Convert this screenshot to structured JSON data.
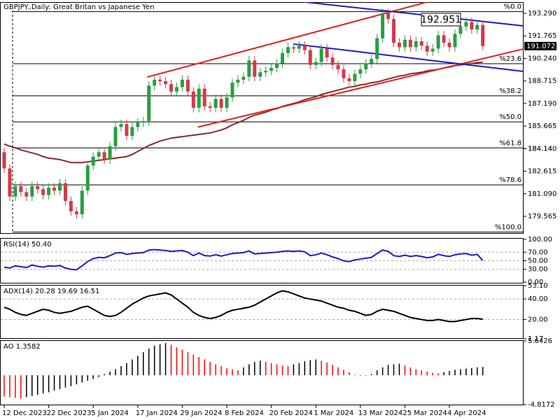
{
  "chart_data": [
    {
      "type": "candlestick",
      "title": "GBPJPY.,Daily:  Great Britan vs Japanese Yen",
      "categories": [
        "12 Dec 2023",
        null,
        null,
        null,
        null,
        null,
        null,
        null,
        "22 Dec 2023",
        null,
        null,
        null,
        null,
        null,
        null,
        null,
        "5 Jan 2024",
        null,
        null,
        null,
        null,
        null,
        null,
        null,
        "17 Jan 2024",
        null,
        null,
        null,
        null,
        null,
        null,
        null,
        "29 Jan 2024",
        null,
        null,
        null,
        null,
        null,
        null,
        null,
        "8 Feb 2024",
        null,
        null,
        null,
        null,
        null,
        null,
        null,
        "20 Feb 2024",
        null,
        null,
        null,
        null,
        null,
        null,
        null,
        "1 Mar 2024",
        null,
        null,
        null,
        null,
        null,
        null,
        null,
        "13 Mar 2024",
        null,
        null,
        null,
        null,
        null,
        null,
        null,
        "25 Mar 2024",
        null,
        null,
        null,
        null,
        null,
        null,
        null,
        "4 Apr 2024",
        null,
        null,
        null,
        null,
        null,
        null
      ],
      "open": [
        183.9,
        182.8,
        180.9,
        181.6,
        181.2,
        180.9,
        181.6,
        181.4,
        181.0,
        181.5,
        181.3,
        181.8,
        180.6,
        179.9,
        179.7,
        181.3,
        183.0,
        183.6,
        183.9,
        183.4,
        184.3,
        185.6,
        185.8,
        185.0,
        185.6,
        185.9,
        186.0,
        188.4,
        188.8,
        188.7,
        188.5,
        188.0,
        188.3,
        188.8,
        188.0,
        186.9,
        188.2,
        187.0,
        186.9,
        187.5,
        186.9,
        187.6,
        188.6,
        188.8,
        189.0,
        190.1,
        189.0,
        189.3,
        189.4,
        189.6,
        189.9,
        190.6,
        191.0,
        190.9,
        191.1,
        190.8,
        189.8,
        190.0,
        190.9,
        190.3,
        189.8,
        189.5,
        188.9,
        188.7,
        189.2,
        189.5,
        189.9,
        190.2,
        191.6,
        193.3,
        192.9,
        191.3,
        191.0,
        191.5,
        191.0,
        191.4,
        191.1,
        190.7,
        190.9,
        191.8,
        191.3,
        191.0,
        191.9,
        192.4,
        192.7,
        192.2,
        192.5
      ],
      "high": [
        184.2,
        183.1,
        181.9,
        181.9,
        181.5,
        181.9,
        181.9,
        181.7,
        181.8,
        181.8,
        182.1,
        182.1,
        180.9,
        180.2,
        181.6,
        183.3,
        183.9,
        184.2,
        184.2,
        184.6,
        185.9,
        186.1,
        186.1,
        185.9,
        186.2,
        186.3,
        188.7,
        189.1,
        189.1,
        189.0,
        188.8,
        188.6,
        189.1,
        189.1,
        188.3,
        188.5,
        188.5,
        187.3,
        187.8,
        187.8,
        187.9,
        188.9,
        189.1,
        189.3,
        190.4,
        190.4,
        189.6,
        189.7,
        189.9,
        190.2,
        190.9,
        191.3,
        191.3,
        191.4,
        191.4,
        191.1,
        190.3,
        191.2,
        191.2,
        190.6,
        190.1,
        189.8,
        189.2,
        189.5,
        189.8,
        190.2,
        190.5,
        191.9,
        193.6,
        193.6,
        193.2,
        191.6,
        191.8,
        191.8,
        191.7,
        191.7,
        191.4,
        191.2,
        192.1,
        192.1,
        191.6,
        192.2,
        192.7,
        193.0,
        193.0,
        192.8,
        192.8
      ],
      "low": [
        182.5,
        180.6,
        180.6,
        180.9,
        180.6,
        180.6,
        181.1,
        180.7,
        180.7,
        181.0,
        181.0,
        180.3,
        179.6,
        179.4,
        179.4,
        181.0,
        182.7,
        183.3,
        183.1,
        183.1,
        184.0,
        185.3,
        184.7,
        184.7,
        185.3,
        185.6,
        185.7,
        188.1,
        188.4,
        188.2,
        187.7,
        187.7,
        188.0,
        187.7,
        186.6,
        186.6,
        186.7,
        186.6,
        186.6,
        186.6,
        186.6,
        187.3,
        188.3,
        188.5,
        188.7,
        188.7,
        188.7,
        189.0,
        189.1,
        189.3,
        189.6,
        190.3,
        190.6,
        190.6,
        190.5,
        189.5,
        189.5,
        189.7,
        190.0,
        189.5,
        189.2,
        188.6,
        188.4,
        188.4,
        188.9,
        189.2,
        189.6,
        189.9,
        191.3,
        192.6,
        191.0,
        190.7,
        190.7,
        190.7,
        190.7,
        190.8,
        190.4,
        190.4,
        190.6,
        191.0,
        190.7,
        190.7,
        191.6,
        192.1,
        191.9,
        191.9,
        190.8
      ],
      "close": [
        182.8,
        180.9,
        181.6,
        181.2,
        180.9,
        181.6,
        181.4,
        181.0,
        181.5,
        181.3,
        181.8,
        180.6,
        179.9,
        179.7,
        181.3,
        183.0,
        183.6,
        183.9,
        183.4,
        184.3,
        185.6,
        185.8,
        185.0,
        185.6,
        185.9,
        186.0,
        188.4,
        188.8,
        188.7,
        188.5,
        188.0,
        188.3,
        188.8,
        188.0,
        186.9,
        188.2,
        187.0,
        186.9,
        187.5,
        186.9,
        187.6,
        188.6,
        188.8,
        189.0,
        190.1,
        189.0,
        189.3,
        189.4,
        189.6,
        189.9,
        190.6,
        191.0,
        190.9,
        191.1,
        190.8,
        189.8,
        190.0,
        190.9,
        190.3,
        189.8,
        189.5,
        188.9,
        188.7,
        189.2,
        189.5,
        189.9,
        190.2,
        191.6,
        193.3,
        192.9,
        191.3,
        191.0,
        191.5,
        191.0,
        191.4,
        191.1,
        190.7,
        190.9,
        191.8,
        191.3,
        191.0,
        191.9,
        192.4,
        192.7,
        192.2,
        192.5,
        191.072
      ],
      "up_color": "#26a041",
      "down_color": "#d33a48",
      "ma": {
        "color": "#8b2a2a",
        "values": [
          184.45,
          184.3,
          184.2,
          184.05,
          183.95,
          183.85,
          183.75,
          183.6,
          183.5,
          183.45,
          183.4,
          183.3,
          183.2,
          183.2,
          183.2,
          183.25,
          183.3,
          183.35,
          183.4,
          183.45,
          183.5,
          183.55,
          183.6,
          183.75,
          183.95,
          184.15,
          184.35,
          184.5,
          184.65,
          184.75,
          184.85,
          184.9,
          184.95,
          185.0,
          185.05,
          185.1,
          185.15,
          185.2,
          185.3,
          185.4,
          185.55,
          185.75,
          185.9,
          186.05,
          186.25,
          186.4,
          186.5,
          186.6,
          186.75,
          186.85,
          187.0,
          187.1,
          187.2,
          187.3,
          187.45,
          187.55,
          187.65,
          187.8,
          187.9,
          188.0,
          188.1,
          188.2,
          188.3,
          188.35,
          188.45,
          188.5,
          188.6,
          188.65,
          188.75,
          188.85,
          188.95,
          189.05,
          189.1,
          189.2,
          189.25,
          189.3,
          189.4,
          189.45,
          189.5,
          189.6,
          189.65,
          189.75,
          189.8,
          189.85,
          189.9,
          189.95,
          190.0
        ]
      },
      "fib_levels": [
        {
          "value": 193.4,
          "label": "%0.0"
        },
        {
          "value": 189.88,
          "label": "%23.6"
        },
        {
          "value": 187.71,
          "label": "%38.2"
        },
        {
          "value": 185.95,
          "label": "%50.0"
        },
        {
          "value": 184.19,
          "label": "%61.8"
        },
        {
          "value": 181.69,
          "label": "%78.6"
        },
        {
          "value": 178.5,
          "label": "%100.0"
        }
      ],
      "trendlines": [
        {
          "color": "#e0201c",
          "x": [
            25.7,
            76
          ],
          "y": [
            188.98,
            194.05
          ]
        },
        {
          "color": "#e0201c",
          "x": [
            34.8,
            93.3
          ],
          "y": [
            185.6,
            190.88
          ]
        },
        {
          "color": "#1a1ad0",
          "x": [
            54,
            93.3
          ],
          "y": [
            194.05,
            192.44
          ]
        },
        {
          "color": "#1a1ad0",
          "x": [
            52.1,
            93.3
          ],
          "y": [
            191.21,
            189.36
          ]
        }
      ],
      "annotation": "192.951",
      "ylim": [
        178.429,
        194.047
      ],
      "yticks": [
        {
          "value": 193.29,
          "label": "193.290"
        },
        191.765,
        {
          "value": 190.24,
          "label": "190.240"
        },
        188.715,
        {
          "value": 187.19,
          "label": "187.190"
        },
        185.665,
        184.14,
        {
          "value": 184.14,
          "label": "184.140"
        },
        182.615,
        {
          "value": 181.09,
          "label": "181.090"
        },
        179.565
      ]
    },
    {
      "type": "line",
      "title": "RSI(14) 50.40",
      "series": [
        {
          "color": "#1a1ad0",
          "values": [
            35,
            33,
            38,
            36,
            34,
            40,
            37,
            35,
            38,
            37,
            39,
            33,
            30,
            29,
            38,
            48,
            55,
            58,
            57,
            62,
            68,
            69,
            65,
            67,
            68,
            69,
            75,
            76,
            75,
            74,
            72,
            73,
            74,
            70,
            62,
            68,
            62,
            61,
            64,
            61,
            64,
            67,
            68,
            69,
            73,
            66,
            67,
            68,
            69,
            70,
            72,
            73,
            72,
            73,
            71,
            62,
            64,
            68,
            64,
            59,
            55,
            50,
            48,
            52,
            54,
            56,
            58,
            67,
            75,
            72,
            62,
            60,
            63,
            60,
            62,
            60,
            57,
            59,
            65,
            62,
            60,
            64,
            66,
            67,
            63,
            65,
            50.4
          ]
        }
      ],
      "ylim": [
        0,
        100
      ],
      "yticks": [
        {
          "value": 100,
          "label": "100.00"
        },
        {
          "value": 70,
          "label": "70.00"
        },
        {
          "value": 50,
          "label": "50.00"
        },
        {
          "value": 30,
          "label": "30.00"
        },
        {
          "value": 0,
          "label": "0.00"
        }
      ]
    },
    {
      "type": "line",
      "title": "ADX(14) 20.28 19.69 16.51",
      "series": [
        {
          "color": "#000000",
          "values": [
            32,
            30,
            27,
            25,
            24,
            26,
            28,
            30,
            29,
            27,
            26,
            27,
            28,
            30,
            32,
            33,
            30,
            27,
            24,
            23,
            24,
            27,
            31,
            35,
            38,
            41,
            43,
            44,
            45,
            46,
            44,
            40,
            36,
            32,
            27,
            24,
            22,
            21,
            22,
            24,
            27,
            29,
            30,
            31,
            32,
            34,
            37,
            40,
            43,
            46,
            48,
            47,
            45,
            43,
            41,
            40,
            39,
            38,
            36,
            34,
            32,
            31,
            29,
            28,
            26,
            24,
            25,
            28,
            30,
            29,
            28,
            26,
            24,
            22,
            21,
            20,
            19,
            19,
            20,
            19,
            18,
            18,
            19,
            20,
            21,
            21,
            20.28
          ]
        }
      ],
      "ylim": [
        1.17,
        53.1
      ],
      "yticks": [
        {
          "value": 53.1,
          "label": "53.10"
        },
        {
          "value": 40,
          "label": "40.00"
        },
        {
          "value": 20,
          "label": "20.00"
        },
        1.17
      ]
    },
    {
      "type": "bar",
      "title": "AO 1.3582",
      "values": [
        -3.5,
        -3.6,
        -3.7,
        -3.8,
        -3.6,
        -3.4,
        -3.2,
        -3.0,
        -2.8,
        -2.5,
        -2.3,
        -2.0,
        -1.8,
        -1.5,
        -1.2,
        -0.9,
        -0.6,
        -0.3,
        0.2,
        0.6,
        1.0,
        1.5,
        2.0,
        2.6,
        3.2,
        3.8,
        4.4,
        4.9,
        5.1,
        5.3,
        5.0,
        4.6,
        4.2,
        3.8,
        3.4,
        3.0,
        2.6,
        2.2,
        1.8,
        1.5,
        1.2,
        1.0,
        0.8,
        1.3,
        1.8,
        2.2,
        2.4,
        2.2,
        2.0,
        1.8,
        1.6,
        1.5,
        1.8,
        2.0,
        2.3,
        2.5,
        2.6,
        2.4,
        2.1,
        1.7,
        1.3,
        0.9,
        0.5,
        0.1,
        -0.1,
        0.0,
        0.2,
        0.8,
        1.3,
        1.7,
        1.8,
        1.9,
        1.6,
        1.3,
        1.0,
        0.8,
        0.6,
        0.4,
        0.3,
        0.5,
        0.7,
        0.9,
        1.0,
        1.1,
        1.2,
        1.3,
        1.3582
      ],
      "up_color": "#000000",
      "down_color": "#ff0000",
      "ylim": [
        -4.8172,
        5.6426
      ],
      "yticks": [
        5.6426,
        -4.8172
      ]
    }
  ]
}
